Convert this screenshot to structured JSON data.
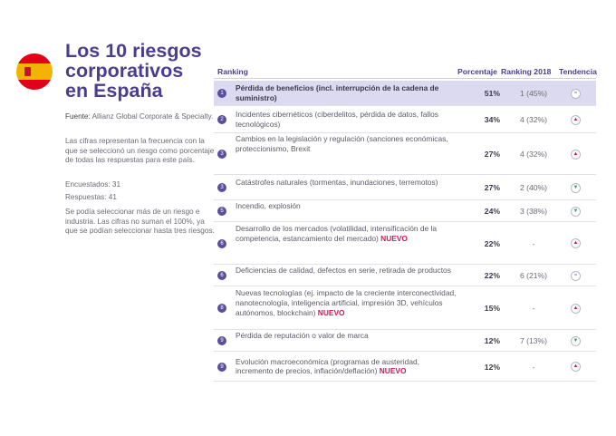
{
  "title": "Los 10 riesgos corporativos en España",
  "sidebar": {
    "source_label": "Fuente:",
    "source_text": "Allianz Global Corporate & Specialty.",
    "desc": "Las cifras representan la frecuencia con la que se seleccionó un riesgo como porcentaje de todas las respuestas para este país.",
    "surveyed": "Encuestados: 31",
    "answers": "Respuestas: 41",
    "note": "Se podía seleccionar más de un riesgo e industria. Las cifras no suman el 100%, ya que se podían seleccionar hasta tres riesgos."
  },
  "table": {
    "headers": {
      "ranking": "Ranking",
      "pct": "Porcentaje",
      "rank2018": "Ranking 2018",
      "trend": "Tendencia"
    },
    "new_label": "NUEVO",
    "rows": [
      {
        "n": "1",
        "label": "Pérdida de beneficios (incl. interrupción de la cadena de suministro)",
        "pct": "51%",
        "rank": "1 (45%)",
        "trend": "=",
        "is_new": false
      },
      {
        "n": "2",
        "label": "Incidentes cibernéticos (ciberdelitos, pérdida de datos, fallos tecnológicos)",
        "pct": "34%",
        "rank": "4 (32%)",
        "trend": "▲",
        "is_new": false
      },
      {
        "n": "3",
        "label": "Cambios en la legislación y regulación (sanciones económicas, proteccionismo, Brexit",
        "pct": "27%",
        "rank": "4 (32%)",
        "trend": "▲",
        "is_new": false
      },
      {
        "n": "3",
        "label": "Catástrofes naturales (tormentas, inundaciones, terremotos)",
        "pct": "27%",
        "rank": "2 (40%)",
        "trend": "▼",
        "is_new": false
      },
      {
        "n": "5",
        "label": "Incendio, explosión",
        "pct": "24%",
        "rank": "3 (38%)",
        "trend": "▼",
        "is_new": false
      },
      {
        "n": "6",
        "label": "Desarrollo de los mercados (volatilidad, intensificación de la competencia, estancamiento del mercado)",
        "pct": "22%",
        "rank": "-",
        "trend": "▲",
        "is_new": true
      },
      {
        "n": "6",
        "label": "Deficiencias de calidad, defectos en serie, retirada de productos",
        "pct": "22%",
        "rank": "6 (21%)",
        "trend": "=",
        "is_new": false
      },
      {
        "n": "8",
        "label": "Nuevas tecnologías (ej. impacto de la creciente interconectividad, nanotecnología, inteligencia artificial, impresión 3D, vehículos autónomos, blockchain)",
        "pct": "15%",
        "rank": "-",
        "trend": "▲",
        "is_new": true
      },
      {
        "n": "9",
        "label": "Pérdida de reputación o valor de marca",
        "pct": "12%",
        "rank": "7 (13%)",
        "trend": "▼",
        "is_new": false
      },
      {
        "n": "9",
        "label": "Evolución macroeconómica (programas de austeridad, incremento de precios, inflación/deflación)",
        "pct": "12%",
        "rank": "-",
        "trend": "▲",
        "is_new": true
      }
    ]
  }
}
